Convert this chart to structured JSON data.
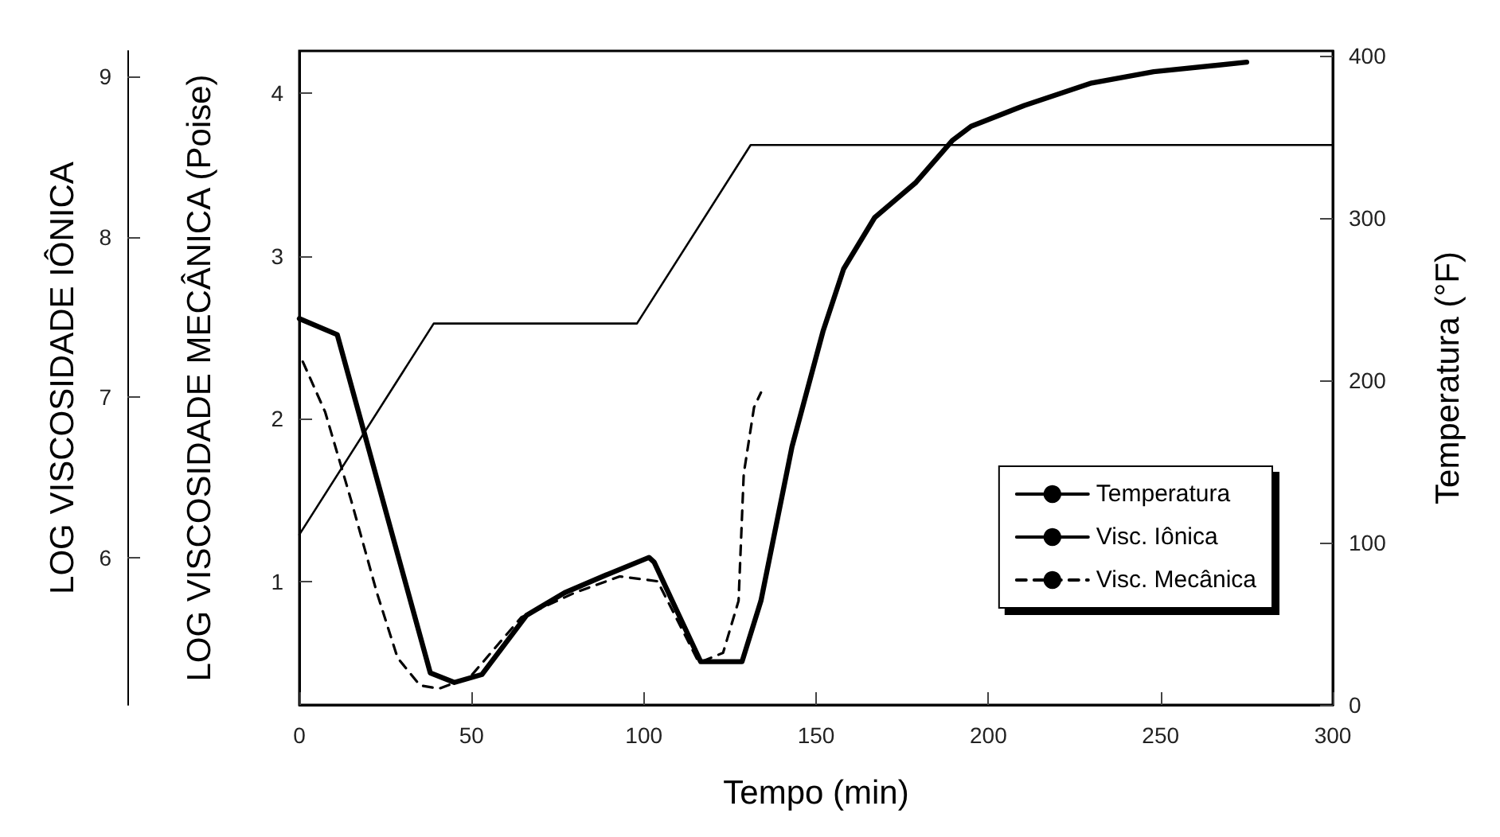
{
  "chart_data": {
    "type": "line",
    "xlabel": "Tempo (min)",
    "ylabel": "LOG VISCOSIDADE MECÂNICA (Poise)",
    "y2label": "Temperatura (°F)",
    "y3label": "LOG VISCOSIDADE IÔNICA",
    "xlim": [
      0,
      300
    ],
    "xticks": [
      0,
      50,
      100,
      150,
      200,
      250,
      300
    ],
    "ylim": [
      0.24,
      4.26
    ],
    "yticks": [
      1,
      2,
      3,
      4
    ],
    "y2lim": [
      0,
      403
    ],
    "y2ticks": [
      0,
      100,
      200,
      300,
      400
    ],
    "y3lim": [
      5.08,
      9.16
    ],
    "y3ticks": [
      6,
      7,
      8,
      9
    ],
    "legend": "bottom right",
    "grid": false,
    "series": [
      {
        "name": "Temperatura",
        "color": "#000000",
        "axis": "y2",
        "line_style": "solid",
        "x": [
          0,
          39,
          98,
          131,
          300
        ],
        "values": [
          105,
          235,
          235,
          345,
          345
        ]
      },
      {
        "name": "Visc. Iônica",
        "color": "#000000",
        "axis": "y3",
        "line_style": "solid",
        "x": [
          0,
          11,
          38,
          45,
          53,
          66,
          77,
          89,
          101.5,
          103,
          116.5,
          128.5,
          134,
          143,
          152,
          158,
          167,
          179,
          189.5,
          195,
          210.5,
          230,
          248,
          275
        ],
        "values": [
          7.49,
          7.39,
          5.28,
          5.22,
          5.27,
          5.64,
          5.78,
          5.89,
          6.0,
          5.97,
          5.35,
          5.35,
          5.73,
          6.69,
          7.41,
          7.8,
          8.12,
          8.34,
          8.6,
          8.69,
          8.82,
          8.96,
          9.03,
          9.09
        ]
      },
      {
        "name": "Visc. Mecânica",
        "color": "#000000",
        "line_style": "dashed",
        "x": [
          1,
          7.5,
          15,
          22.5,
          28.5,
          35,
          40.5,
          49.5,
          64.5,
          80,
          93,
          104,
          116,
          123,
          127.5,
          129,
          132,
          134
        ],
        "values": [
          2.35,
          2.04,
          1.5,
          0.93,
          0.53,
          0.36,
          0.34,
          0.41,
          0.78,
          0.93,
          1.03,
          1.0,
          0.5,
          0.56,
          0.88,
          1.66,
          2.07,
          2.16
        ]
      }
    ]
  }
}
